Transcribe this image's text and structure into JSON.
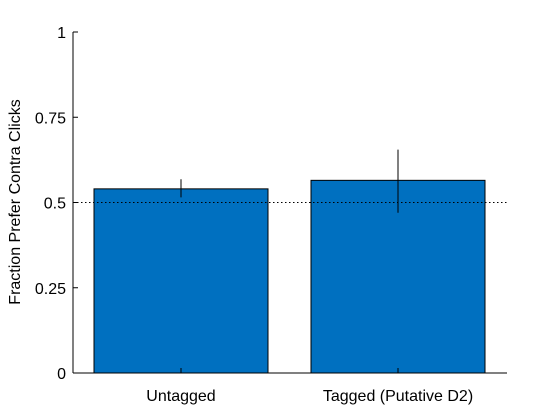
{
  "chart_data": {
    "type": "bar",
    "title": "",
    "xlabel": "",
    "ylabel": "Fraction Prefer Contra Clicks",
    "categories": [
      "Untagged",
      "Tagged (Putative D2)"
    ],
    "values": [
      0.54,
      0.565
    ],
    "error_bars": [
      [
        0.515,
        0.568
      ],
      [
        0.47,
        0.655
      ]
    ],
    "reference_line": 0.5,
    "ylim": [
      0,
      1
    ],
    "yticks": [
      0,
      0.25,
      0.5,
      0.75,
      1
    ],
    "ytick_labels": [
      "0",
      "0.25",
      "0.5",
      "0.75",
      "1"
    ],
    "grid": false,
    "legend": "none",
    "bar_color": "#0070C0",
    "edge_color": "#000000",
    "errorbar_color": "#000000",
    "reference_line_color": "#000000"
  }
}
